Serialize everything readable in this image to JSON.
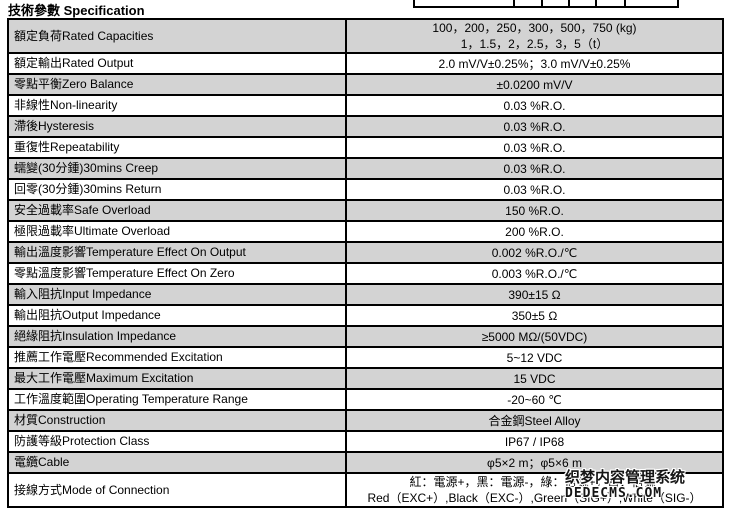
{
  "header": {
    "title": "技術參數 Specification"
  },
  "table": {
    "rows": [
      {
        "label": "額定負荷Rated Capacities",
        "values": [
          "100，200，250，300，500，750 (kg)",
          "1，1.5，2，2.5，3，5（t）"
        ],
        "shaded": true,
        "tall": true
      },
      {
        "label": "額定輸出Rated Output",
        "values": [
          "2.0 mV/V±0.25%；3.0 mV/V±0.25%"
        ],
        "shaded": false,
        "tall": false
      },
      {
        "label": "零點平衡Zero Balance",
        "values": [
          "±0.0200 mV/V"
        ],
        "shaded": true,
        "tall": false
      },
      {
        "label": "非線性Non-linearity",
        "values": [
          "0.03 %R.O."
        ],
        "shaded": false,
        "tall": false
      },
      {
        "label": "滯後Hysteresis",
        "values": [
          "0.03 %R.O."
        ],
        "shaded": true,
        "tall": false
      },
      {
        "label": "重復性Repeatability",
        "values": [
          "0.03 %R.O."
        ],
        "shaded": false,
        "tall": false
      },
      {
        "label": "蠕變(30分鍾)30mins Creep",
        "values": [
          "0.03 %R.O."
        ],
        "shaded": true,
        "tall": false
      },
      {
        "label": "回零(30分鍾)30mins Return",
        "values": [
          "0.03 %R.O."
        ],
        "shaded": false,
        "tall": false
      },
      {
        "label": "安全過載率Safe Overload",
        "values": [
          "150 %R.O."
        ],
        "shaded": true,
        "tall": false
      },
      {
        "label": "極限過載率Ultimate Overload",
        "values": [
          "200 %R.O."
        ],
        "shaded": false,
        "tall": false
      },
      {
        "label": "輸出溫度影響Temperature Effect On Output",
        "values": [
          "0.002 %R.O./℃"
        ],
        "shaded": true,
        "tall": false
      },
      {
        "label": "零點溫度影響Temperature Effect On Zero",
        "values": [
          "0.003 %R.O./℃"
        ],
        "shaded": false,
        "tall": false
      },
      {
        "label": "輸入阻抗Input Impedance",
        "values": [
          "390±15 Ω"
        ],
        "shaded": true,
        "tall": false
      },
      {
        "label": "輸出阻抗Output Impedance",
        "values": [
          "350±5 Ω"
        ],
        "shaded": false,
        "tall": false
      },
      {
        "label": "絕緣阻抗Insulation Impedance",
        "values": [
          "≥5000 MΩ/(50VDC)"
        ],
        "shaded": true,
        "tall": false
      },
      {
        "label": "推薦工作電壓Recommended Excitation",
        "values": [
          "5~12 VDC"
        ],
        "shaded": false,
        "tall": false
      },
      {
        "label": "最大工作電壓Maximum Excitation",
        "values": [
          "15 VDC"
        ],
        "shaded": true,
        "tall": false
      },
      {
        "label": "工作溫度範圍Operating Temperature Range",
        "values": [
          "-20~60 ℃"
        ],
        "shaded": false,
        "tall": false
      },
      {
        "label": "材質Construction",
        "values": [
          "合金鋼Steel Alloy"
        ],
        "shaded": true,
        "tall": false
      },
      {
        "label": "防護等級Protection Class",
        "values": [
          "IP67 / IP68"
        ],
        "shaded": false,
        "tall": false
      },
      {
        "label": "電纜Cable",
        "values": [
          "φ5×2 m；φ5×6 m"
        ],
        "shaded": true,
        "tall": false
      },
      {
        "label": "接線方式Mode of Connection",
        "values": [
          "紅：電源+，黑：電源-，綠：信號+，白：信號-",
          "Red（EXC+）,Black（EXC-）,Green（SIG+）,White（SIG-）"
        ],
        "shaded": false,
        "tall": true
      }
    ]
  },
  "watermark": {
    "line1": "织梦内容管理系统",
    "line2": "DEDECMS.COM"
  }
}
